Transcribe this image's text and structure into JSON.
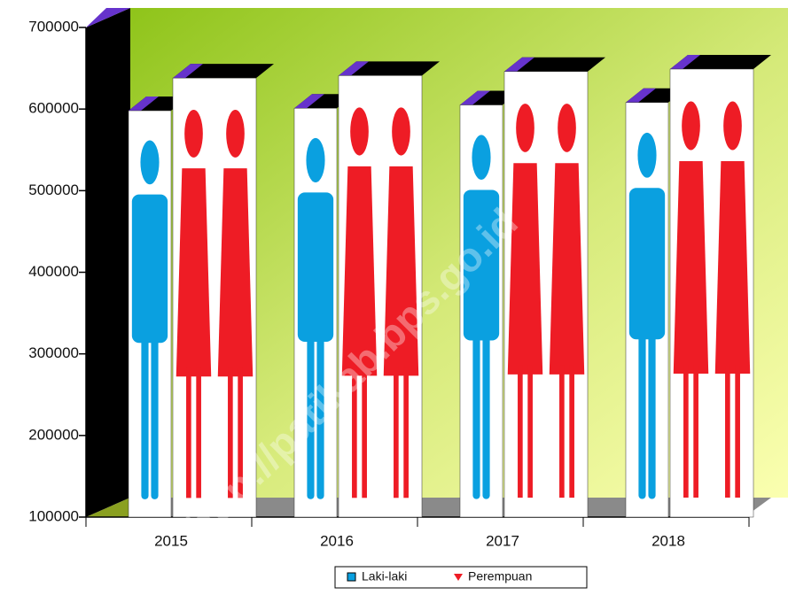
{
  "chart_data": {
    "type": "bar",
    "categories": [
      "2015",
      "2016",
      "2017",
      "2018"
    ],
    "series": [
      {
        "name": "Laki-laki",
        "color": "#0aa0e0",
        "values": [
          598000,
          601000,
          605000,
          608000
        ]
      },
      {
        "name": "Perempuan",
        "color": "#ee1c25",
        "values": [
          638000,
          641000,
          646000,
          649000
        ]
      }
    ],
    "ylim": [
      100000,
      700000
    ],
    "yticks": [
      100000,
      200000,
      300000,
      400000,
      500000,
      600000,
      700000
    ],
    "legend": "bottom",
    "watermark": "http://patikab.bps.go.id"
  }
}
